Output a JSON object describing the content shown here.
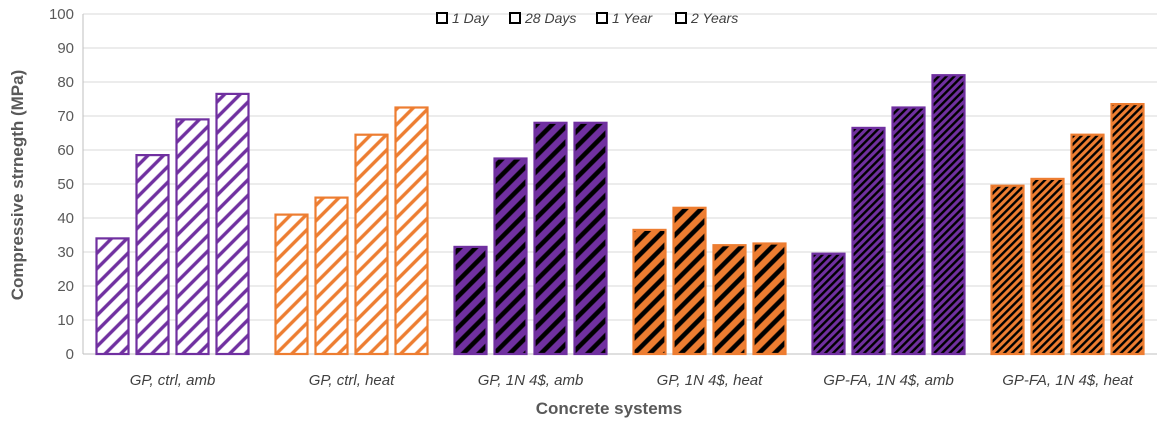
{
  "chart_data": {
    "type": "bar",
    "title": "",
    "xlabel": "Concrete systems",
    "ylabel": "Compressive strnegth (MPa)",
    "ylim": [
      0,
      100
    ],
    "yticks": [
      0,
      10,
      20,
      30,
      40,
      50,
      60,
      70,
      80,
      90,
      100
    ],
    "grid": "horizontal",
    "legend_position": "top-center",
    "legend": [
      "1 Day",
      "28 Days",
      "1 Year",
      "2 Years"
    ],
    "categories": [
      "GP, ctrl, amb",
      "GP, ctrl, heat",
      "GP, 1N 4$, amb",
      "GP, 1N 4$, heat",
      "GP-FA, 1N 4$, amb",
      "GP-FA, 1N 4$, heat"
    ],
    "series": [
      {
        "name": "1 Day",
        "values": [
          34,
          41,
          31.5,
          36.5,
          29.5,
          49.5
        ]
      },
      {
        "name": "28 Days",
        "values": [
          58.5,
          46,
          57.5,
          43,
          66.5,
          51.5
        ]
      },
      {
        "name": "1 Year",
        "values": [
          69,
          64.5,
          68,
          32,
          72.5,
          64.5
        ]
      },
      {
        "name": "2 Years",
        "values": [
          76.5,
          72.5,
          68,
          32.5,
          82,
          73.5
        ]
      }
    ],
    "group_styles": [
      {
        "stroke": "#7030A0",
        "fill": "#7030A0",
        "background": "#ffffff",
        "pattern": "wide-light"
      },
      {
        "stroke": "#ED7D31",
        "fill": "#ED7D31",
        "background": "#ffffff",
        "pattern": "wide-light"
      },
      {
        "stroke": "#7030A0",
        "fill": "#000000",
        "background": "#7030A0",
        "pattern": "wide-dark"
      },
      {
        "stroke": "#ED7D31",
        "fill": "#000000",
        "background": "#ED7D31",
        "pattern": "wide-dark"
      },
      {
        "stroke": "#7030A0",
        "fill": "#000000",
        "background": "#7030A0",
        "pattern": "narrow-dark"
      },
      {
        "stroke": "#ED7D31",
        "fill": "#000000",
        "background": "#ED7D31",
        "pattern": "narrow-dark"
      }
    ],
    "colors": {
      "grid": "#d9d9d9",
      "axis": "#bfbfbf",
      "text": "#595959"
    }
  }
}
